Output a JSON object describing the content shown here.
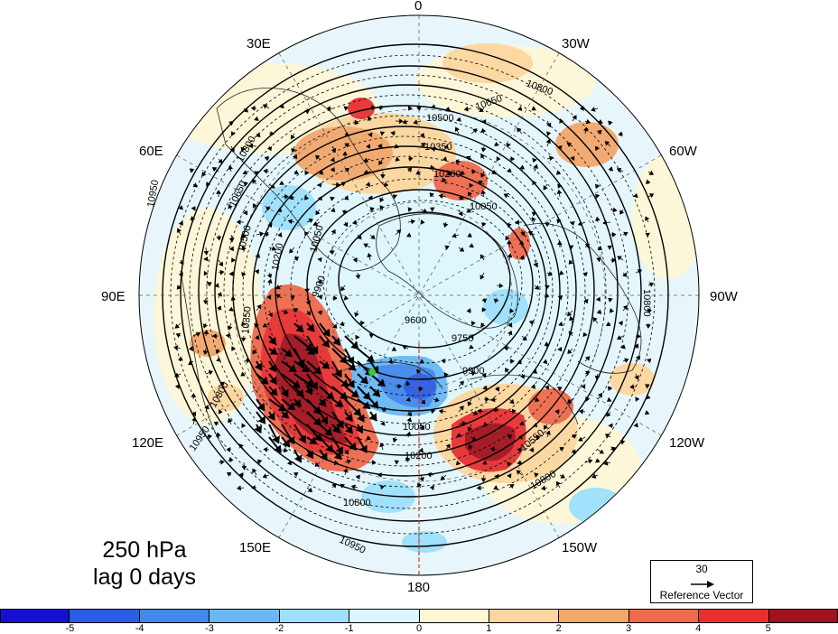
{
  "map": {
    "projection": "north-polar-stereographic",
    "longitude_labels": {
      "top": "0",
      "upper_left": "30E",
      "upper_right": "30W",
      "left_upper": "60E",
      "right_upper": "60W",
      "left": "90E",
      "right": "90W",
      "left_lower": "120E",
      "right_lower": "120W",
      "lower_left": "150E",
      "lower_right": "150W",
      "bottom": "180"
    },
    "contour_labels": [
      "10950",
      "10800",
      "10650",
      "10500",
      "10350",
      "10200",
      "10050",
      "9900",
      "9750",
      "9600"
    ],
    "marker_color": "#33cc33"
  },
  "annotation": {
    "level": "250 hPa",
    "lag": "lag 0 days"
  },
  "reference_vector": {
    "magnitude": "30",
    "label": "Reference Vector"
  },
  "colorbar": {
    "colors": [
      "#1410d2",
      "#2a5ce6",
      "#4488ec",
      "#6ab8f4",
      "#9ee0fb",
      "#dbf7fd",
      "#fdf7d6",
      "#fdd69e",
      "#f2a76b",
      "#ef6a4d",
      "#e83030",
      "#a1121d"
    ],
    "tick_labels": [
      "-5",
      "-4",
      "-3",
      "-2",
      "-1",
      "0",
      "1",
      "2",
      "3",
      "4",
      "5"
    ]
  }
}
